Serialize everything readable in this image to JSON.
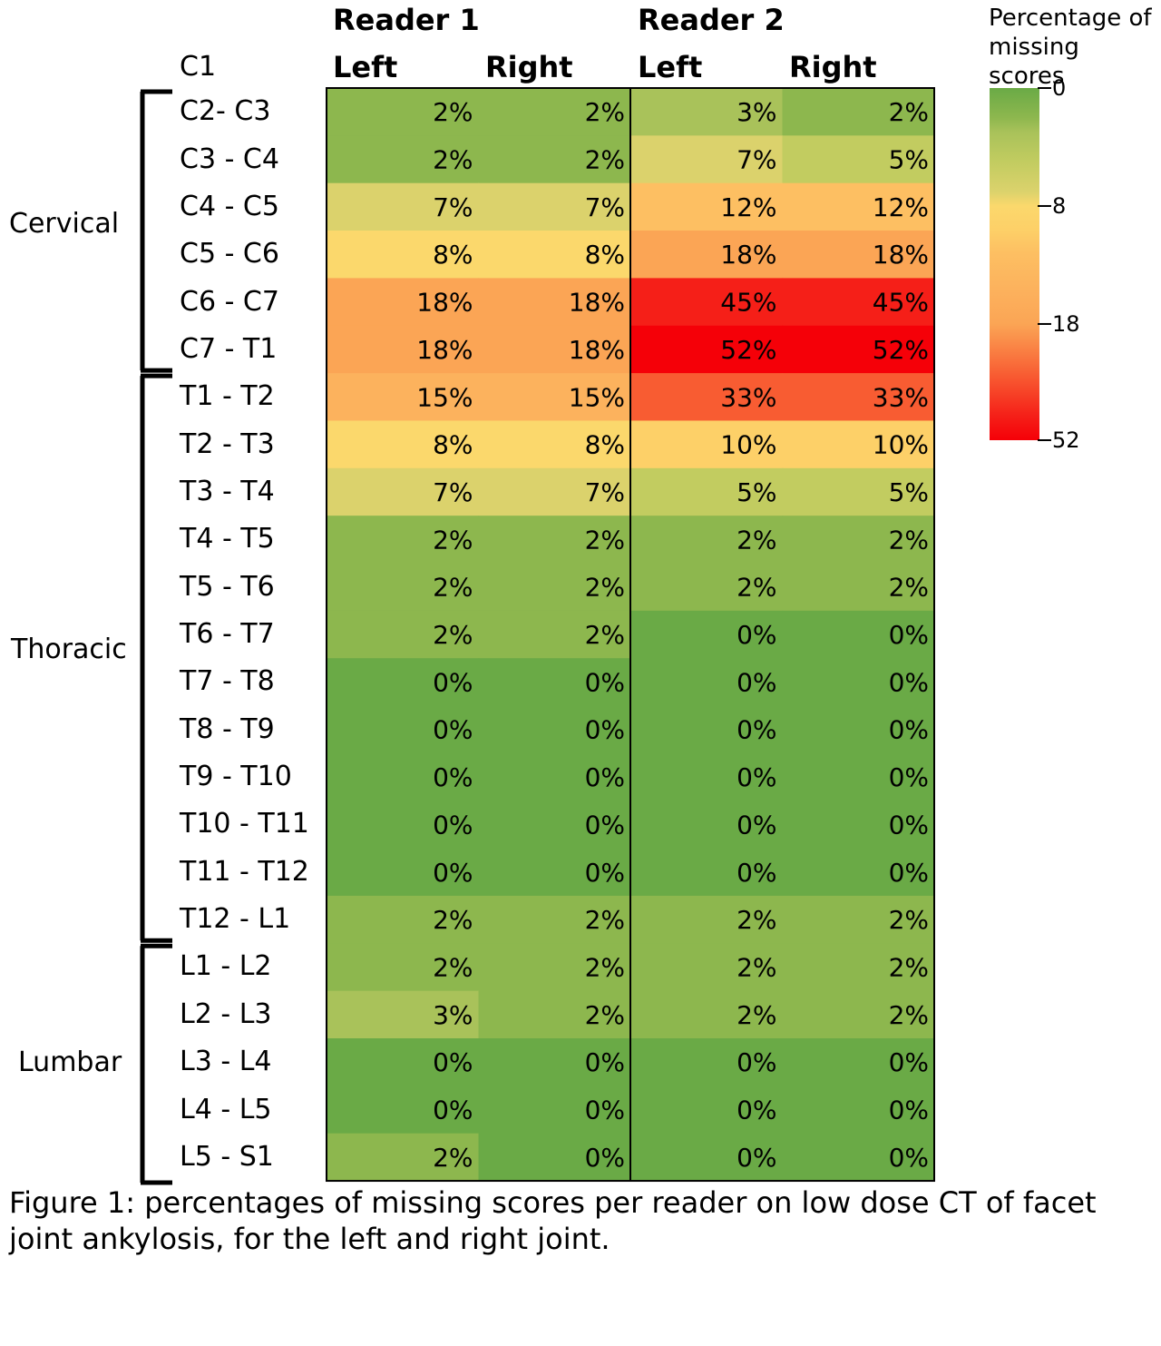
{
  "chart_data": {
    "type": "heatmap",
    "title": "",
    "xlabel": "",
    "ylabel": "",
    "top_row_label": "C1",
    "readers": [
      "Reader 1",
      "Reader 2"
    ],
    "sides": [
      "Left",
      "Right"
    ],
    "columns": [
      "Reader 1 Left",
      "Reader 1 Right",
      "Reader 2 Left",
      "Reader 2 Right"
    ],
    "rows": [
      "C2- C3",
      "C3 - C4",
      "C4 - C5",
      "C5 - C6",
      "C6 - C7",
      "C7 - T1",
      "T1 - T2",
      "T2 - T3",
      "T3 - T4",
      "T4 - T5",
      "T5 - T6",
      "T6 - T7",
      "T7 - T8",
      "T8 - T9",
      "T9 - T10",
      "T10 - T11",
      "T11 - T12",
      "T12 - L1",
      "L1 - L2",
      "L2 - L3",
      "L3 - L4",
      "L4 - L5",
      "L5 - S1"
    ],
    "values": [
      [
        2,
        2,
        3,
        2
      ],
      [
        2,
        2,
        7,
        5
      ],
      [
        7,
        7,
        12,
        12
      ],
      [
        8,
        8,
        18,
        18
      ],
      [
        18,
        18,
        45,
        45
      ],
      [
        18,
        18,
        52,
        52
      ],
      [
        15,
        15,
        33,
        33
      ],
      [
        8,
        8,
        10,
        10
      ],
      [
        7,
        7,
        5,
        5
      ],
      [
        2,
        2,
        2,
        2
      ],
      [
        2,
        2,
        2,
        2
      ],
      [
        2,
        2,
        0,
        0
      ],
      [
        0,
        0,
        0,
        0
      ],
      [
        0,
        0,
        0,
        0
      ],
      [
        0,
        0,
        0,
        0
      ],
      [
        0,
        0,
        0,
        0
      ],
      [
        0,
        0,
        0,
        0
      ],
      [
        2,
        2,
        2,
        2
      ],
      [
        2,
        2,
        2,
        2
      ],
      [
        3,
        2,
        2,
        2
      ],
      [
        0,
        0,
        0,
        0
      ],
      [
        0,
        0,
        0,
        0
      ],
      [
        2,
        0,
        0,
        0
      ]
    ],
    "value_suffix": "%",
    "regions": [
      {
        "name": "Cervical",
        "first_row": 0,
        "last_row": 5
      },
      {
        "name": "Thoracic",
        "first_row": 6,
        "last_row": 17
      },
      {
        "name": "Lumbar",
        "first_row": 18,
        "last_row": 22
      }
    ],
    "colorscale": {
      "title": "Percentage of missing scores",
      "ticks": [
        0,
        8,
        18,
        52
      ],
      "stops": [
        {
          "value": 0,
          "color": "#6aaa46"
        },
        {
          "value": 2,
          "color": "#8db74e"
        },
        {
          "value": 3,
          "color": "#a9c25a"
        },
        {
          "value": 5,
          "color": "#c2cc60"
        },
        {
          "value": 7,
          "color": "#dbd26c"
        },
        {
          "value": 8,
          "color": "#fbd86c"
        },
        {
          "value": 10,
          "color": "#fdd068"
        },
        {
          "value": 12,
          "color": "#fdbf62"
        },
        {
          "value": 15,
          "color": "#fcb25d"
        },
        {
          "value": 18,
          "color": "#fba555"
        },
        {
          "value": 33,
          "color": "#f85c32"
        },
        {
          "value": 45,
          "color": "#f51f18"
        },
        {
          "value": 52,
          "color": "#f50008"
        }
      ]
    }
  },
  "caption": "Figure 1: percentages of missing scores per reader on low dose CT of facet joint ankylosis, for the left and right joint."
}
